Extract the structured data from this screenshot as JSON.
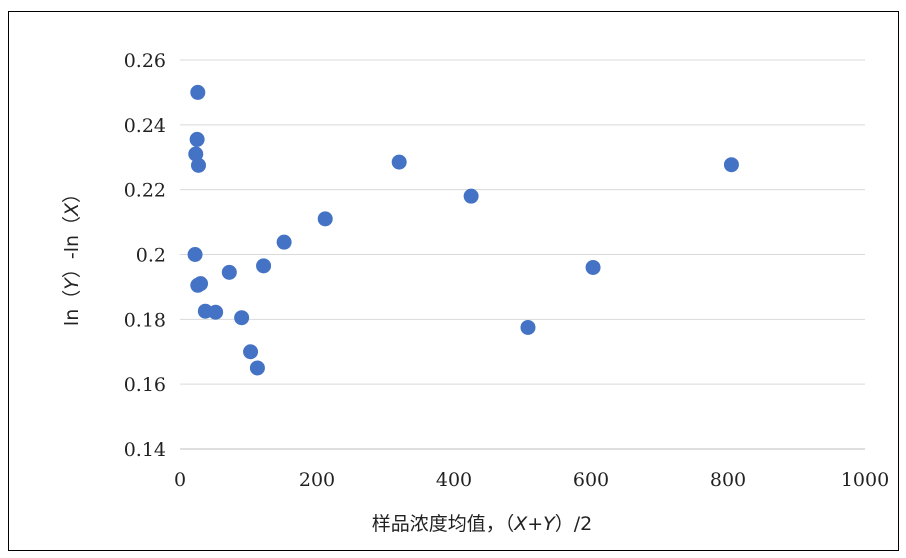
{
  "chart_data": {
    "type": "scatter",
    "xlabel_parts": [
      "样品浓度均值，（",
      "X",
      "+",
      "Y",
      "）/2"
    ],
    "ylabel_parts": [
      "ln（",
      "Y",
      "）-ln（",
      "X",
      "）"
    ],
    "xlim": [
      0,
      1000
    ],
    "ylim": [
      0.14,
      0.26
    ],
    "x_ticks": [
      0,
      200,
      400,
      600,
      800,
      1000
    ],
    "x_tick_labels": [
      "0",
      "200",
      "400",
      "600",
      "800",
      "1000"
    ],
    "y_ticks": [
      0.14,
      0.16,
      0.18,
      0.2,
      0.22,
      0.24,
      0.26
    ],
    "y_tick_labels": [
      "0.14",
      "0.16",
      "0.18",
      "0.2",
      "0.22",
      "0.24",
      "0.26"
    ],
    "grid": true,
    "color": "#4472C4",
    "points": [
      {
        "x": 26,
        "y": 0.25
      },
      {
        "x": 25,
        "y": 0.2355
      },
      {
        "x": 23,
        "y": 0.231
      },
      {
        "x": 27,
        "y": 0.2275
      },
      {
        "x": 22,
        "y": 0.2
      },
      {
        "x": 26,
        "y": 0.1905
      },
      {
        "x": 30,
        "y": 0.191
      },
      {
        "x": 37,
        "y": 0.1825
      },
      {
        "x": 52,
        "y": 0.1822
      },
      {
        "x": 72,
        "y": 0.1945
      },
      {
        "x": 90,
        "y": 0.1805
      },
      {
        "x": 103,
        "y": 0.17
      },
      {
        "x": 113,
        "y": 0.165
      },
      {
        "x": 122,
        "y": 0.1965
      },
      {
        "x": 152,
        "y": 0.2038
      },
      {
        "x": 212,
        "y": 0.211
      },
      {
        "x": 320,
        "y": 0.2285
      },
      {
        "x": 425,
        "y": 0.218
      },
      {
        "x": 508,
        "y": 0.1775
      },
      {
        "x": 603,
        "y": 0.196
      },
      {
        "x": 805,
        "y": 0.2277
      }
    ]
  }
}
